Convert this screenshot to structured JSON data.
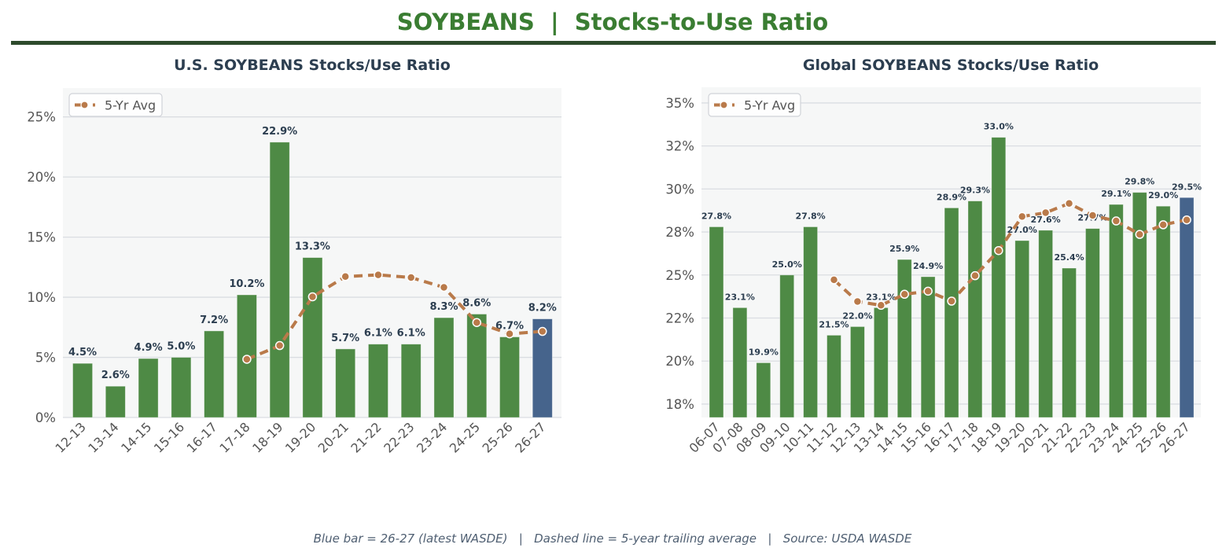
{
  "page": {
    "title": "SOYBEANS  |  Stocks-to-Use Ratio",
    "footer": "Blue bar = 26-27 (latest WASDE)   |   Dashed line = 5-year trailing average   |   Source: USDA WASDE"
  },
  "colors": {
    "title": "#3a7d32",
    "rule": "#2d4a2b",
    "bar": "#4e8a45",
    "latest_bar": "#46648c",
    "avg_line": "#b97a4a",
    "subtitle": "#2c3e50"
  },
  "chart_data": [
    {
      "type": "bar",
      "title": "U.S. SOYBEANS Stocks/Use Ratio",
      "xlabel": "",
      "ylabel": "",
      "categories": [
        "12-13",
        "13-14",
        "14-15",
        "15-16",
        "16-17",
        "17-18",
        "18-19",
        "19-20",
        "20-21",
        "21-22",
        "22-23",
        "23-24",
        "24-25",
        "25-26",
        "26-27"
      ],
      "series": [
        {
          "name": "Stocks/Use Ratio (%)",
          "type": "bar",
          "values": [
            4.5,
            2.6,
            4.9,
            5.0,
            7.2,
            10.2,
            22.9,
            13.3,
            5.7,
            6.1,
            6.1,
            8.3,
            8.6,
            6.7,
            8.2
          ]
        },
        {
          "name": "5-Yr Avg",
          "type": "line",
          "style": "dashed",
          "values": [
            null,
            null,
            null,
            null,
            null,
            4.84,
            5.98,
            10.04,
            11.72,
            11.86,
            11.64,
            10.82,
            7.9,
            6.96,
            7.16
          ]
        }
      ],
      "value_labels": [
        "4.5%",
        "2.6%",
        "4.9%",
        "5.0%",
        "7.2%",
        "10.2%",
        "22.9%",
        "13.3%",
        "5.7%",
        "6.1%",
        "6.1%",
        "8.3%",
        "8.6%",
        "6.7%",
        "8.2%"
      ],
      "highlight": "26-27",
      "ylim": [
        0,
        27.4
      ],
      "yticks": [
        0,
        5,
        10,
        15,
        20,
        25
      ],
      "ytick_labels": [
        "0%",
        "5%",
        "10%",
        "15%",
        "20%",
        "25%"
      ],
      "grid": true,
      "legend": {
        "label": "5-Yr Avg",
        "location": "upper-left"
      }
    },
    {
      "type": "bar",
      "title": "Global SOYBEANS Stocks/Use Ratio",
      "xlabel": "",
      "ylabel": "",
      "categories": [
        "06-07",
        "07-08",
        "08-09",
        "09-10",
        "10-11",
        "11-12",
        "12-13",
        "13-14",
        "14-15",
        "15-16",
        "16-17",
        "17-18",
        "18-19",
        "19-20",
        "20-21",
        "21-22",
        "22-23",
        "23-24",
        "24-25",
        "25-26",
        "26-27"
      ],
      "series": [
        {
          "name": "Stocks/Use Ratio (%)",
          "type": "bar",
          "values": [
            27.8,
            23.1,
            19.9,
            25.0,
            27.8,
            21.5,
            22.0,
            23.1,
            25.9,
            24.9,
            28.9,
            29.3,
            33.0,
            27.0,
            27.6,
            25.4,
            27.7,
            29.1,
            29.8,
            29.0,
            29.5
          ]
        },
        {
          "name": "5-Yr Avg",
          "type": "line",
          "style": "dashed",
          "values": [
            null,
            null,
            null,
            null,
            null,
            24.72,
            23.46,
            23.24,
            23.88,
            24.06,
            23.48,
            24.96,
            26.42,
            28.4,
            28.62,
            29.16,
            28.46,
            28.14,
            27.36,
            27.92,
            28.2
          ]
        }
      ],
      "value_labels": [
        "27.8%",
        "23.1%",
        "19.9%",
        "25.0%",
        "27.8%",
        "21.5%",
        "22.0%",
        "23.1%",
        "25.9%",
        "24.9%",
        "28.9%",
        "29.3%",
        "33.0%",
        "27.0%",
        "27.6%",
        "25.4%",
        "27.7%",
        "29.1%",
        "29.8%",
        "29.0%",
        "29.5%"
      ],
      "highlight": "26-27",
      "ylim": [
        16.72,
        35.91
      ],
      "yticks": [
        17.5,
        20,
        22.5,
        25,
        27.5,
        30,
        32.5,
        35
      ],
      "ytick_labels": [
        "18%",
        "20%",
        "22%",
        "25%",
        "28%",
        "30%",
        "32%",
        "35%"
      ],
      "grid": true,
      "legend": {
        "label": "5-Yr Avg",
        "location": "upper-left"
      }
    }
  ]
}
